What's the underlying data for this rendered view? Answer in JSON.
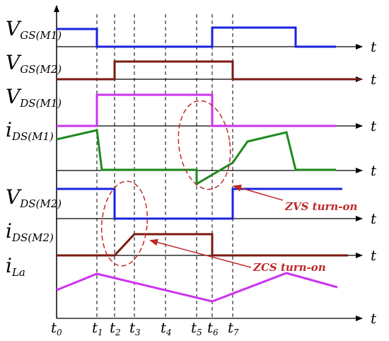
{
  "signals": [
    {
      "id": "vgs-m1",
      "main": "V",
      "sub": "GS(M1)",
      "color": "#1a22e0"
    },
    {
      "id": "vgs-m2",
      "main": "V",
      "sub": "GS(M2)",
      "color": "#7a1a12"
    },
    {
      "id": "vds-m1",
      "main": "V",
      "sub": "DS(M1)",
      "color": "#cc33ee"
    },
    {
      "id": "ids-m1",
      "main": "i",
      "sub": "DS(M1)",
      "color": "#1e8a1e"
    },
    {
      "id": "vds-m2",
      "main": "V",
      "sub": "DS(M2)",
      "color": "#1a22e0"
    },
    {
      "id": "ids-m2",
      "main": "i",
      "sub": "DS(M2)",
      "color": "#7a1a12"
    },
    {
      "id": "ila",
      "main": "i",
      "sub": "La",
      "color": "#cc33ee"
    }
  ],
  "axis_label": "t",
  "time_marks": [
    {
      "main": "t",
      "sub": "0"
    },
    {
      "main": "t",
      "sub": "1"
    },
    {
      "main": "t",
      "sub": "2"
    },
    {
      "main": "t",
      "sub": "3"
    },
    {
      "main": "t",
      "sub": "4"
    },
    {
      "main": "t",
      "sub": "5"
    },
    {
      "main": "t",
      "sub": "6"
    },
    {
      "main": "t",
      "sub": "7"
    }
  ],
  "annotations": {
    "zvs": "ZVS turn-on",
    "zcs": "ZCS turn-on",
    "color": "#c0282a"
  }
}
